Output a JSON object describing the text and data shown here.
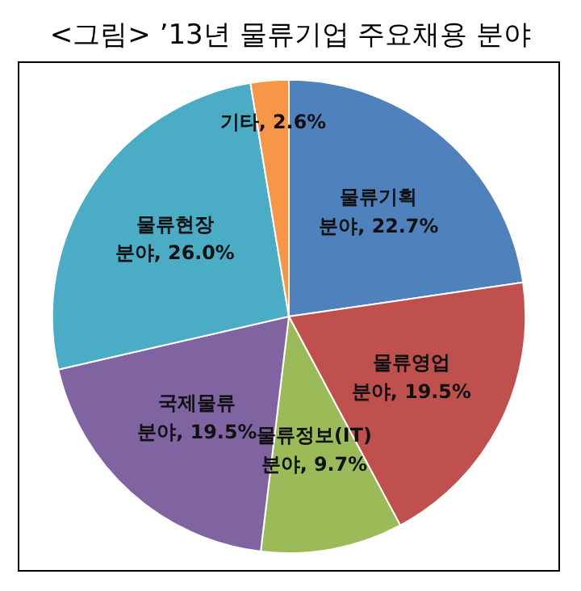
{
  "chart_data": {
    "type": "pie",
    "title": "<그림> ’13년 물류기업 주요채용 분야",
    "categories": [
      "물류기획 분야",
      "물류영업 분야",
      "물류정보(IT) 분야",
      "국제물류 분야",
      "물류현장 분야",
      "기타"
    ],
    "values": [
      22.7,
      19.5,
      9.7,
      19.5,
      26.0,
      2.6
    ],
    "colors": [
      "#4f81bd",
      "#c0504d",
      "#9bbb59",
      "#8064a2",
      "#4bacc6",
      "#f79646"
    ],
    "value_labels": [
      "22.7%",
      "19.5%",
      "9.7%",
      "19.5%",
      "26.0%",
      "2.6%"
    ],
    "legend": false
  }
}
